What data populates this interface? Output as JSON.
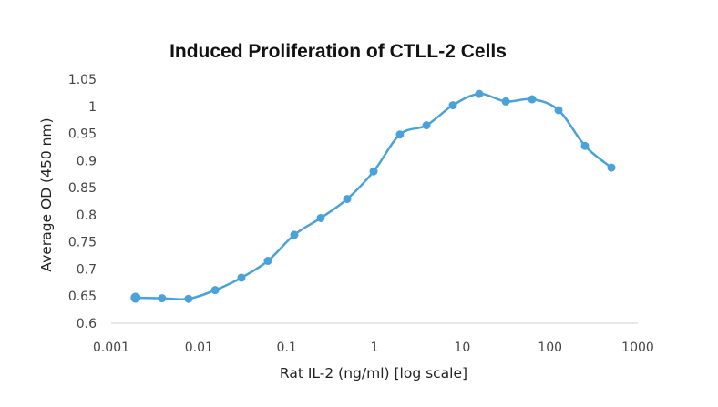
{
  "chart_data": {
    "type": "line",
    "title": "Induced Proliferation of CTLL-2 Cells",
    "xlabel": "Rat IL-2 (ng/ml) [log scale]",
    "ylabel": "Average OD (450 nm)",
    "x_scale": "log",
    "xlim": [
      0.001,
      1000
    ],
    "ylim": [
      0.6,
      1.05
    ],
    "x_tick_labels": [
      "0.001",
      "0.01",
      "0.1",
      "1",
      "10",
      "100",
      "1000"
    ],
    "y_tick_labels": [
      "0.6",
      "0.65",
      "0.7",
      "0.75",
      "0.8",
      "0.85",
      "0.9",
      "0.95",
      "1",
      "1.05"
    ],
    "grid": false,
    "legend": "none",
    "colors": {
      "series": "#4aa3d8",
      "axis": "#d0d0d0"
    },
    "series": [
      {
        "x": [
          0.0019,
          0.0038,
          0.0076,
          0.0153,
          0.0305,
          0.061,
          0.122,
          0.244,
          0.488,
          0.977,
          1.95,
          3.91,
          7.81,
          15.6,
          31.3,
          62.5,
          125,
          250,
          500
        ],
        "y": [
          0.647,
          0.646,
          0.645,
          0.661,
          0.684,
          0.715,
          0.763,
          0.794,
          0.829,
          0.88,
          0.948,
          0.965,
          1.002,
          1.023,
          1.009,
          1.013,
          0.993,
          0.927,
          0.887
        ]
      }
    ]
  }
}
